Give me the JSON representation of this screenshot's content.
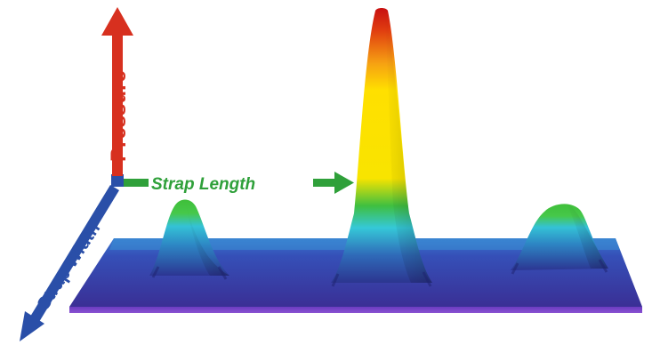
{
  "axes": {
    "pressure": {
      "label": "Pressure",
      "color": "#d7301f"
    },
    "strap_length": {
      "label": "Strap Length",
      "color": "#2fa03a"
    },
    "strap_width": {
      "label": "Strap Width",
      "color": "#2a4fa8"
    }
  },
  "colors": {
    "plate_top": "#3040a0",
    "plate_front": "#5a38a8",
    "low": "#2a2f8f",
    "mid": "#2ec4dc",
    "green": "#2fbf3f",
    "yellow": "#ffe400",
    "orange": "#f08a10",
    "red": "#d41c10"
  },
  "peaks": [
    {
      "name": "left-peak",
      "relative_height": 0.3
    },
    {
      "name": "center-peak",
      "relative_height": 1.0
    },
    {
      "name": "right-peak",
      "relative_height": 0.25
    }
  ]
}
